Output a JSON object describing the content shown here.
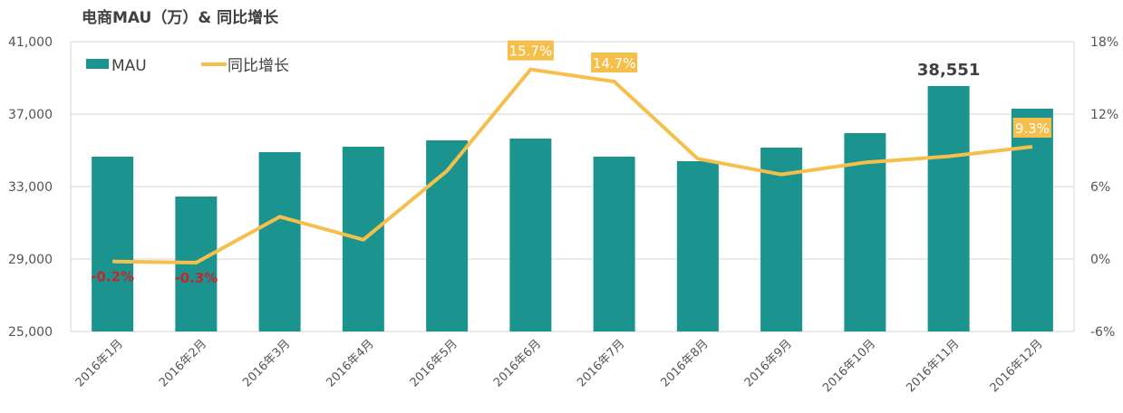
{
  "chart_data": {
    "type": "bar+line",
    "title": "电商MAU（万）& 同比增长",
    "categories": [
      "2016年1月",
      "2016年2月",
      "2016年3月",
      "2016年4月",
      "2016年5月",
      "2016年6月",
      "2016年7月",
      "2016年8月",
      "2016年9月",
      "2016年10月",
      "2016年11月",
      "2016年12月"
    ],
    "series": [
      {
        "name": "MAU",
        "type": "bar",
        "axis": "left",
        "color": "#1b9490",
        "values": [
          34650,
          32450,
          34900,
          35200,
          35550,
          35650,
          34650,
          34400,
          35150,
          35950,
          38551,
          37300
        ]
      },
      {
        "name": "同比增长",
        "type": "line",
        "axis": "right",
        "color": "#f5bf4c",
        "unit": "%",
        "values": [
          -0.2,
          -0.3,
          3.5,
          1.6,
          7.3,
          15.7,
          14.7,
          8.3,
          7.0,
          8.0,
          8.5,
          9.3
        ]
      }
    ],
    "y_left": {
      "ticks": [
        "41,000",
        "37,000",
        "33,000",
        "29,000",
        "25,000"
      ],
      "range": [
        25000,
        41000
      ]
    },
    "y_right": {
      "ticks": [
        "18%",
        "12%",
        "6%",
        "0%",
        "-6%"
      ],
      "range": [
        -6,
        18
      ]
    },
    "annotations": [
      {
        "index": 0,
        "text": "-0.2%",
        "color": "#c0282d"
      },
      {
        "index": 1,
        "text": "-0.3%",
        "color": "#c0282d"
      },
      {
        "index": 5,
        "text": "15.7%",
        "bg": "#f5bf4c"
      },
      {
        "index": 6,
        "text": "14.7%",
        "bg": "#f5bf4c"
      },
      {
        "index": 10,
        "text": "38,551",
        "color": "#404040"
      },
      {
        "index": 11,
        "text": "9.3%",
        "bg": "#f5bf4c"
      }
    ],
    "legend": {
      "position": "top-left",
      "entries": [
        "MAU",
        "同比增长"
      ]
    },
    "grid": true
  }
}
